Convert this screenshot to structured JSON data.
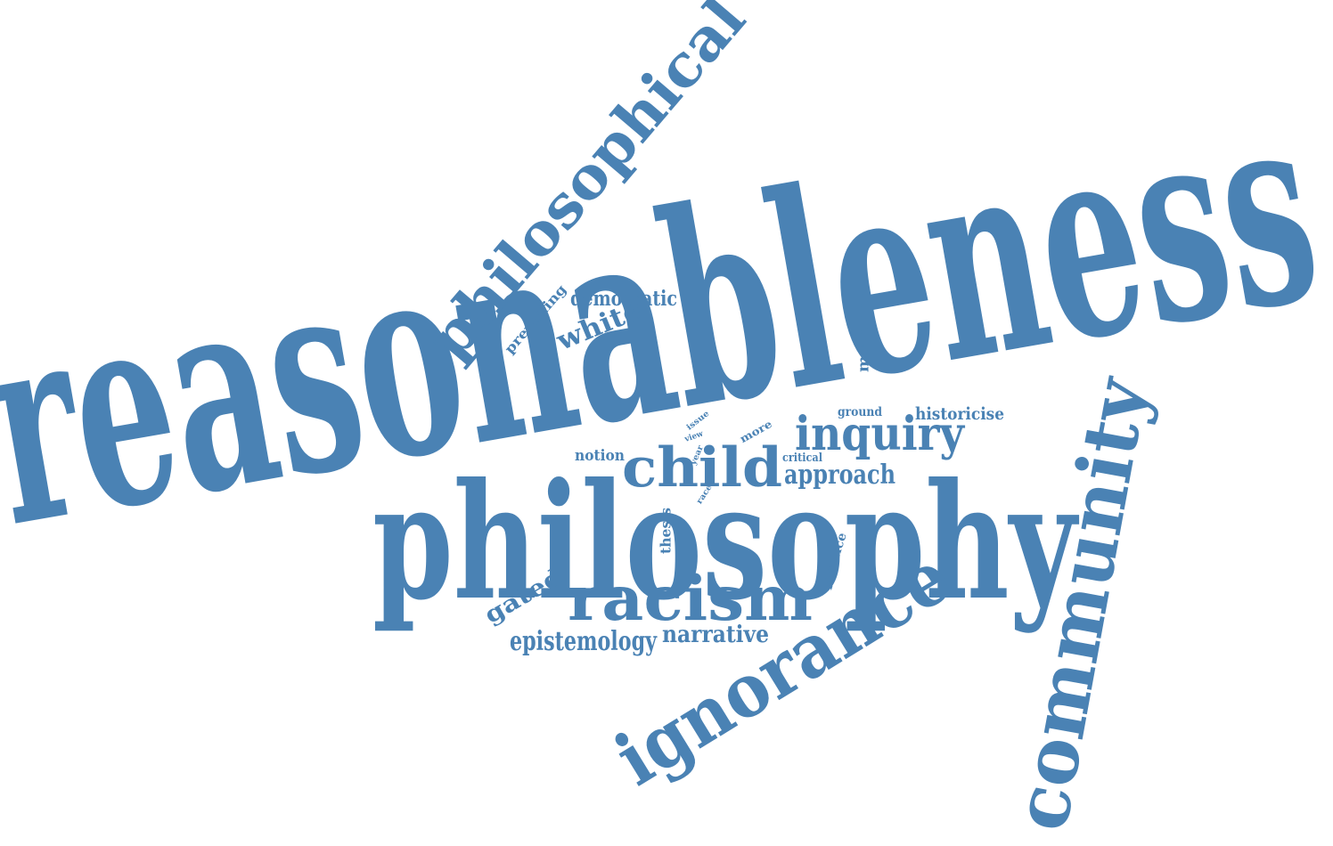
{
  "color": "#4a82b4",
  "words": [
    {
      "id": "reasonableness",
      "text": "reasonableness"
    },
    {
      "id": "philosophy",
      "text": "philosophy"
    },
    {
      "id": "philosophical",
      "text": "philosophical"
    },
    {
      "id": "community",
      "text": "community"
    },
    {
      "id": "ignorance",
      "text": "ignorance"
    },
    {
      "id": "racism",
      "text": "racism"
    },
    {
      "id": "child",
      "text": "child"
    },
    {
      "id": "inquiry",
      "text": "inquiry"
    },
    {
      "id": "approach",
      "text": "approach"
    },
    {
      "id": "white",
      "text": "white"
    },
    {
      "id": "democratic",
      "text": "democratic"
    },
    {
      "id": "prevailing",
      "text": "prevailing"
    },
    {
      "id": "movement",
      "text": "movement"
    },
    {
      "id": "historicise",
      "text": "historicise"
    },
    {
      "id": "ground",
      "text": "ground"
    },
    {
      "id": "more",
      "text": "more"
    },
    {
      "id": "issue",
      "text": "issue"
    },
    {
      "id": "view",
      "text": "view"
    },
    {
      "id": "year",
      "text": "year"
    },
    {
      "id": "race",
      "text": "race"
    },
    {
      "id": "critical",
      "text": "critical"
    },
    {
      "id": "notion",
      "text": "notion"
    },
    {
      "id": "thesis",
      "text": "thesis"
    },
    {
      "id": "practice",
      "text": "practice"
    },
    {
      "id": "gated",
      "text": "gated"
    },
    {
      "id": "epistemology",
      "text": "epistemology"
    },
    {
      "id": "narrative",
      "text": "narrative"
    }
  ]
}
